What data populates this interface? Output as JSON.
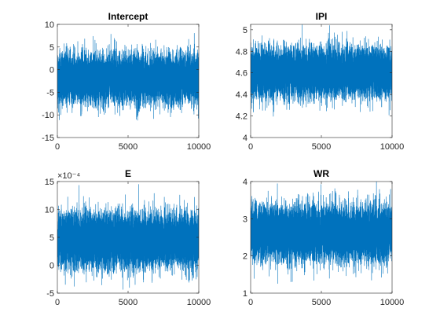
{
  "chart_data": [
    {
      "type": "line",
      "title": "Intercept",
      "xlabel": "",
      "ylabel": "",
      "xlim": [
        0,
        10000
      ],
      "ylim": [
        -15,
        10
      ],
      "xticks": [
        0,
        5000,
        10000
      ],
      "yticks": [
        -15,
        -10,
        -5,
        0,
        5,
        10
      ],
      "exponent_label": "",
      "grid": false,
      "color": "#0072BD",
      "series": [
        {
          "mean": -2.0,
          "std": 2.6,
          "n_samples": 10000
        }
      ]
    },
    {
      "type": "line",
      "title": "IPI",
      "xlabel": "",
      "ylabel": "",
      "xlim": [
        0,
        10000
      ],
      "ylim": [
        4,
        5.05
      ],
      "xticks": [
        0,
        5000,
        10000
      ],
      "yticks": [
        4,
        4.2,
        4.4,
        4.6,
        4.8,
        5
      ],
      "exponent_label": "",
      "grid": false,
      "color": "#0072BD",
      "series": [
        {
          "mean": 4.6,
          "std": 0.11,
          "n_samples": 10000
        }
      ]
    },
    {
      "type": "line",
      "title": "E",
      "xlabel": "",
      "ylabel": "",
      "xlim": [
        0,
        10000
      ],
      "ylim": [
        -5,
        15
      ],
      "xticks": [
        0,
        5000,
        10000
      ],
      "yticks": [
        -5,
        0,
        5,
        10,
        15
      ],
      "exponent_label": "×10⁻⁴",
      "grid": false,
      "color": "#0072BD",
      "series": [
        {
          "mean": 4.5,
          "std": 2.4,
          "n_samples": 10000
        }
      ]
    },
    {
      "type": "line",
      "title": "WR",
      "xlabel": "",
      "ylabel": "",
      "xlim": [
        0,
        10000
      ],
      "ylim": [
        1,
        4
      ],
      "xticks": [
        0,
        5000,
        10000
      ],
      "yticks": [
        1,
        2,
        3,
        4
      ],
      "exponent_label": "",
      "grid": false,
      "color": "#0072BD",
      "series": [
        {
          "mean": 2.6,
          "std": 0.36,
          "n_samples": 10000
        }
      ]
    }
  ]
}
